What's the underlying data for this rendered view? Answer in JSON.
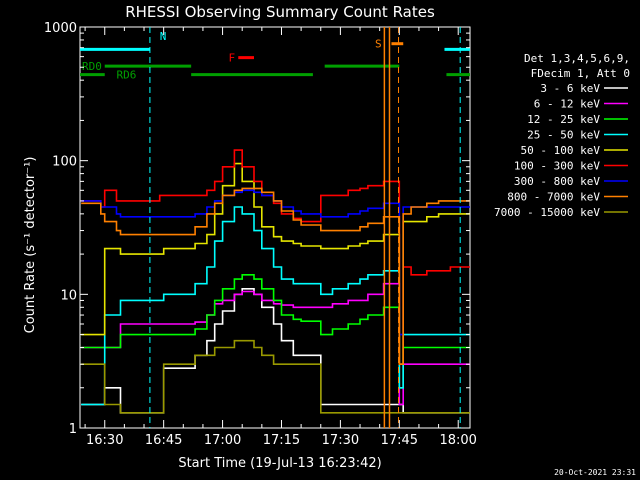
{
  "chart_data": {
    "type": "line",
    "title": "RHESSI Observing Summary Count Rates",
    "xlabel": "Start Time (19-Jul-13 16:23:42)",
    "ylabel": "Count Rate (s⁻¹ detector⁻¹)",
    "ylim": [
      1,
      1000
    ],
    "yscale": "log",
    "xlim_min": [
      23.7,
      123
    ],
    "y_ticks": [
      1,
      10,
      100,
      1000
    ],
    "y_tick_labels": [
      "1",
      "10",
      "100",
      "1000"
    ],
    "x_ticks": [
      30,
      45,
      60,
      75,
      90,
      105,
      120
    ],
    "x_tick_labels": [
      "16:30",
      "16:45",
      "17:00",
      "17:15",
      "17:30",
      "17:45",
      "18:00"
    ],
    "legend_header": [
      "Det 1,3,4,5,6,9,",
      "FDecim 1, Att 0"
    ],
    "legend_placement": "right",
    "series": [
      {
        "name": "3 - 6 keV",
        "color": "#ffffff",
        "x": [
          24,
          29,
          30,
          33,
          34,
          44,
          45,
          52,
          53,
          56,
          58,
          60,
          63,
          65,
          68,
          70,
          73,
          75,
          78,
          80,
          84,
          85,
          88,
          92,
          95,
          97,
          101,
          105,
          106,
          108,
          112,
          115,
          118,
          120,
          123
        ],
        "y": [
          1.5,
          1.5,
          2.0,
          2.0,
          1.3,
          1.3,
          2.8,
          2.8,
          3.5,
          4.5,
          6,
          7.5,
          10,
          11,
          10,
          8,
          6,
          4.5,
          3.5,
          3.5,
          3.5,
          1.5,
          1.5,
          1.5,
          1.5,
          1.5,
          1.5,
          1.5,
          1.3,
          1.3,
          1.3,
          1.3,
          1.3,
          1.3,
          1.3
        ]
      },
      {
        "name": "6 - 12 keV",
        "color": "#ff00ff",
        "x": [
          24,
          29,
          30,
          33,
          34,
          44,
          45,
          52,
          53,
          56,
          58,
          60,
          63,
          65,
          68,
          70,
          73,
          75,
          78,
          80,
          84,
          85,
          88,
          92,
          95,
          97,
          101,
          105,
          106,
          108,
          112,
          115,
          118,
          120,
          123
        ],
        "y": [
          4,
          4,
          4,
          4,
          6,
          6,
          6,
          6,
          6.2,
          7,
          8.5,
          9,
          10,
          10.5,
          10,
          9,
          8.5,
          8.3,
          8,
          8,
          8,
          8,
          8.5,
          9,
          9,
          10,
          12,
          1.5,
          3,
          3,
          3,
          3,
          3,
          3,
          3
        ]
      },
      {
        "name": "12 - 25 keV",
        "color": "#00ff00",
        "x": [
          24,
          29,
          30,
          33,
          34,
          44,
          45,
          52,
          53,
          56,
          58,
          60,
          63,
          65,
          68,
          70,
          73,
          75,
          78,
          80,
          84,
          85,
          88,
          92,
          95,
          97,
          101,
          105,
          106,
          108,
          112,
          115,
          118,
          120,
          123
        ],
        "y": [
          4,
          4,
          4,
          4,
          5,
          5,
          5,
          5,
          5.5,
          7,
          9,
          11,
          13,
          14,
          13,
          11,
          9,
          7,
          6.5,
          6.3,
          6.3,
          5,
          5.5,
          6,
          6.5,
          7,
          8,
          2,
          4,
          4,
          4,
          4,
          4,
          4,
          4
        ]
      },
      {
        "name": "25 - 50 keV",
        "color": "#00ffff",
        "x": [
          24,
          29,
          30,
          33,
          34,
          44,
          45,
          52,
          53,
          56,
          58,
          60,
          63,
          65,
          68,
          70,
          73,
          75,
          78,
          80,
          84,
          85,
          88,
          92,
          95,
          97,
          101,
          105,
          106,
          108,
          112,
          115,
          118,
          120,
          123
        ],
        "y": [
          1.5,
          1.5,
          7,
          7,
          9,
          9,
          10,
          10,
          12,
          16,
          25,
          35,
          45,
          40,
          30,
          22,
          16,
          13,
          12,
          12,
          12,
          10,
          11,
          12,
          13,
          14,
          15,
          2,
          5,
          5,
          5,
          5,
          5,
          5,
          5
        ]
      },
      {
        "name": "50 - 100 keV",
        "color": "#e6e600",
        "x": [
          24,
          29,
          30,
          33,
          34,
          44,
          45,
          52,
          53,
          56,
          58,
          60,
          63,
          65,
          68,
          70,
          73,
          75,
          78,
          80,
          84,
          85,
          88,
          92,
          95,
          97,
          101,
          105,
          106,
          108,
          112,
          115,
          118,
          120,
          123
        ],
        "y": [
          5,
          5,
          22,
          22,
          20,
          20,
          22,
          22,
          24,
          28,
          40,
          65,
          95,
          70,
          45,
          32,
          27,
          25,
          24,
          23,
          23,
          22,
          22,
          23,
          24,
          25,
          28,
          3,
          35,
          35,
          38,
          40,
          40,
          40,
          40
        ]
      },
      {
        "name": "100 - 300 keV",
        "color": "#ff0000",
        "x": [
          24,
          29,
          30,
          33,
          34,
          44,
          45,
          52,
          53,
          56,
          58,
          60,
          63,
          65,
          68,
          70,
          73,
          75,
          78,
          80,
          84,
          85,
          88,
          92,
          95,
          97,
          101,
          105,
          106,
          108,
          112,
          115,
          118,
          120,
          123
        ],
        "y": [
          50,
          45,
          60,
          50,
          50,
          55,
          55,
          55,
          55,
          60,
          70,
          90,
          120,
          90,
          70,
          55,
          48,
          40,
          37,
          35,
          35,
          55,
          55,
          60,
          62,
          65,
          70,
          3,
          16,
          14,
          15,
          15,
          16,
          16,
          16
        ]
      },
      {
        "name": "300 - 800 keV",
        "color": "#0000ff",
        "x": [
          24,
          29,
          30,
          33,
          34,
          44,
          45,
          52,
          53,
          56,
          58,
          60,
          63,
          65,
          68,
          70,
          73,
          75,
          78,
          80,
          84,
          85,
          88,
          92,
          95,
          97,
          101,
          105,
          106,
          108,
          112,
          115,
          118,
          120,
          123
        ],
        "y": [
          50,
          45,
          45,
          40,
          38,
          38,
          38,
          38,
          40,
          45,
          50,
          55,
          58,
          60,
          58,
          55,
          50,
          45,
          42,
          40,
          40,
          38,
          38,
          40,
          42,
          44,
          48,
          5,
          45,
          45,
          45,
          45,
          45,
          45,
          45
        ]
      },
      {
        "name": "800 - 7000 keV",
        "color": "#ff8000",
        "x": [
          24,
          29,
          30,
          33,
          34,
          44,
          45,
          52,
          53,
          56,
          58,
          60,
          63,
          65,
          68,
          70,
          73,
          75,
          78,
          80,
          84,
          85,
          88,
          92,
          95,
          97,
          101,
          105,
          106,
          108,
          112,
          115,
          118,
          120,
          123
        ],
        "y": [
          48,
          40,
          35,
          30,
          28,
          28,
          28,
          28,
          32,
          40,
          48,
          55,
          60,
          62,
          62,
          58,
          50,
          42,
          36,
          33,
          33,
          30,
          30,
          30,
          32,
          34,
          38,
          3,
          40,
          45,
          48,
          50,
          50,
          50,
          50
        ]
      },
      {
        "name": "7000 - 15000 keV",
        "color": "#999900",
        "x": [
          24,
          29,
          30,
          33,
          34,
          44,
          45,
          52,
          53,
          56,
          58,
          60,
          63,
          65,
          68,
          70,
          73,
          75,
          78,
          80,
          84,
          85,
          88,
          92,
          95,
          97,
          101,
          105,
          106,
          108,
          112,
          115,
          118,
          120,
          123
        ],
        "y": [
          3,
          3,
          1.5,
          1.5,
          1.3,
          1.3,
          3,
          3,
          3.5,
          3.5,
          4,
          4,
          4.5,
          4.5,
          4,
          3.5,
          3,
          3,
          3,
          3,
          3,
          1.3,
          1.3,
          1.3,
          1.3,
          1.3,
          1.3,
          1.3,
          1.3,
          1.3,
          1.3,
          1.3,
          1.3,
          1.3,
          1.3
        ]
      }
    ],
    "annotations": [
      {
        "label": "N",
        "color": "#00ffff"
      },
      {
        "label": "F",
        "color": "#ff0000"
      },
      {
        "label": "S",
        "color": "#ff8000"
      },
      {
        "label": "RD0",
        "color": "#00a000"
      },
      {
        "label": "RD6",
        "color": "#00a000"
      }
    ],
    "annotation_bars": {
      "night": [
        [
          23.7,
          41.5
        ],
        [
          116.5,
          123
        ]
      ],
      "flare": [
        [
          64,
          68
        ]
      ],
      "saa": [
        [
          103,
          106
        ]
      ],
      "rd0": [
        [
          30,
          52
        ],
        [
          86,
          105
        ]
      ],
      "rd6": [
        [
          23.7,
          30
        ],
        [
          52,
          83
        ],
        [
          117,
          123
        ]
      ]
    },
    "annotation_lines": {
      "night_dashed": [
        41.5,
        120.5
      ],
      "saa_solid": [
        101.2,
        102.5
      ],
      "saa_dashed": [
        104.8
      ]
    }
  },
  "footer_date": "20-Oct-2021 23:31"
}
